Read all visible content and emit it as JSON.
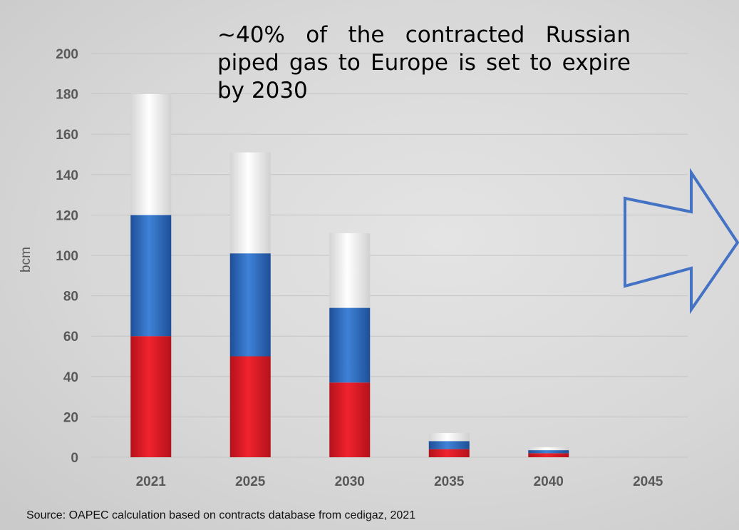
{
  "annotation": "~40% of the contracted Russian piped gas to Europe is set to expire by 2030",
  "source": "Source: OAPEC calculation based on  contracts database from cedigaz, 2021",
  "colors": {
    "red": "#e61e2a",
    "blue": "#2f6fc4",
    "white": "#f7f7f7",
    "arrow": "#4472c4",
    "gridline": "#c4c4c4",
    "tick_text": "#595959"
  },
  "chart_data": {
    "type": "bar",
    "stacked": true,
    "title": "",
    "xlabel": "",
    "ylabel": "bcm",
    "ylim": [
      0,
      200
    ],
    "yticks": [
      0,
      20,
      40,
      60,
      80,
      100,
      120,
      140,
      160,
      180,
      200
    ],
    "grid": true,
    "legend": "none",
    "categories": [
      "2021",
      "2025",
      "2030",
      "2035",
      "2040",
      "2045"
    ],
    "series": [
      {
        "color": "#e61e2a",
        "values": [
          60,
          50,
          37,
          4,
          2,
          0
        ]
      },
      {
        "color": "#2f6fc4",
        "values": [
          60,
          51,
          37,
          4,
          1.5,
          0
        ]
      },
      {
        "color": "#f7f7f7",
        "values": [
          60,
          50,
          37,
          4,
          1.5,
          0
        ]
      }
    ]
  },
  "decorations": {
    "arrow": {
      "direction": "right",
      "style": "outline",
      "icon": "right-arrow-icon"
    }
  }
}
